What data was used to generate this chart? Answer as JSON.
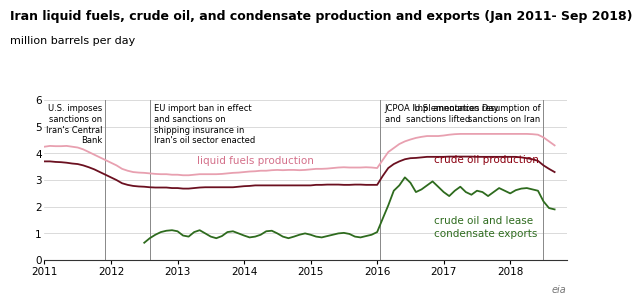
{
  "title": "Iran liquid fuels, crude oil, and condensate production and exports (Jan 2011- Sep 2018)",
  "subtitle": "million barrels per day",
  "title_fontsize": 9.5,
  "subtitle_fontsize": 8.5,
  "ylim": [
    0,
    6
  ],
  "yticks": [
    0,
    1,
    2,
    3,
    4,
    5,
    6
  ],
  "xlim_start": 2011.0,
  "xlim_end": 2018.85,
  "xticks": [
    2011,
    2012,
    2013,
    2014,
    2015,
    2016,
    2017,
    2018
  ],
  "vlines": [
    2011.917,
    2012.583,
    2016.042,
    2018.5
  ],
  "line_colors": {
    "liquid_fuels": "#e8a0b0",
    "crude_oil": "#6b1020",
    "exports": "#2e6b1e"
  },
  "liquid_fuels_x": [
    2011.0,
    2011.083,
    2011.167,
    2011.25,
    2011.333,
    2011.417,
    2011.5,
    2011.583,
    2011.667,
    2011.75,
    2011.833,
    2011.917,
    2012.0,
    2012.083,
    2012.167,
    2012.25,
    2012.333,
    2012.417,
    2012.5,
    2012.583,
    2012.667,
    2012.75,
    2012.833,
    2012.917,
    2013.0,
    2013.083,
    2013.167,
    2013.25,
    2013.333,
    2013.417,
    2013.5,
    2013.583,
    2013.667,
    2013.75,
    2013.833,
    2013.917,
    2014.0,
    2014.083,
    2014.167,
    2014.25,
    2014.333,
    2014.417,
    2014.5,
    2014.583,
    2014.667,
    2014.75,
    2014.833,
    2014.917,
    2015.0,
    2015.083,
    2015.167,
    2015.25,
    2015.333,
    2015.417,
    2015.5,
    2015.583,
    2015.667,
    2015.75,
    2015.833,
    2015.917,
    2016.0,
    2016.083,
    2016.167,
    2016.25,
    2016.333,
    2016.417,
    2016.5,
    2016.583,
    2016.667,
    2016.75,
    2016.833,
    2016.917,
    2017.0,
    2017.083,
    2017.167,
    2017.25,
    2017.333,
    2017.417,
    2017.5,
    2017.583,
    2017.667,
    2017.75,
    2017.833,
    2017.917,
    2018.0,
    2018.083,
    2018.167,
    2018.25,
    2018.333,
    2018.417,
    2018.5,
    2018.583,
    2018.667
  ],
  "liquid_fuels_y": [
    4.25,
    4.28,
    4.27,
    4.27,
    4.28,
    4.25,
    4.22,
    4.15,
    4.05,
    3.95,
    3.85,
    3.75,
    3.65,
    3.55,
    3.42,
    3.35,
    3.3,
    3.28,
    3.27,
    3.25,
    3.23,
    3.22,
    3.22,
    3.2,
    3.2,
    3.18,
    3.18,
    3.2,
    3.22,
    3.22,
    3.22,
    3.22,
    3.23,
    3.25,
    3.27,
    3.28,
    3.3,
    3.32,
    3.33,
    3.35,
    3.35,
    3.37,
    3.38,
    3.37,
    3.38,
    3.38,
    3.37,
    3.38,
    3.4,
    3.42,
    3.42,
    3.43,
    3.45,
    3.47,
    3.48,
    3.47,
    3.47,
    3.47,
    3.48,
    3.47,
    3.45,
    3.75,
    4.05,
    4.2,
    4.35,
    4.45,
    4.52,
    4.58,
    4.62,
    4.65,
    4.65,
    4.65,
    4.67,
    4.7,
    4.72,
    4.73,
    4.73,
    4.73,
    4.73,
    4.73,
    4.73,
    4.73,
    4.73,
    4.73,
    4.73,
    4.73,
    4.73,
    4.73,
    4.72,
    4.7,
    4.6,
    4.45,
    4.3
  ],
  "crude_oil_x": [
    2011.0,
    2011.083,
    2011.167,
    2011.25,
    2011.333,
    2011.417,
    2011.5,
    2011.583,
    2011.667,
    2011.75,
    2011.833,
    2011.917,
    2012.0,
    2012.083,
    2012.167,
    2012.25,
    2012.333,
    2012.417,
    2012.5,
    2012.583,
    2012.667,
    2012.75,
    2012.833,
    2012.917,
    2013.0,
    2013.083,
    2013.167,
    2013.25,
    2013.333,
    2013.417,
    2013.5,
    2013.583,
    2013.667,
    2013.75,
    2013.833,
    2013.917,
    2014.0,
    2014.083,
    2014.167,
    2014.25,
    2014.333,
    2014.417,
    2014.5,
    2014.583,
    2014.667,
    2014.75,
    2014.833,
    2014.917,
    2015.0,
    2015.083,
    2015.167,
    2015.25,
    2015.333,
    2015.417,
    2015.5,
    2015.583,
    2015.667,
    2015.75,
    2015.833,
    2015.917,
    2016.0,
    2016.083,
    2016.167,
    2016.25,
    2016.333,
    2016.417,
    2016.5,
    2016.583,
    2016.667,
    2016.75,
    2016.833,
    2016.917,
    2017.0,
    2017.083,
    2017.167,
    2017.25,
    2017.333,
    2017.417,
    2017.5,
    2017.583,
    2017.667,
    2017.75,
    2017.833,
    2017.917,
    2018.0,
    2018.083,
    2018.167,
    2018.25,
    2018.333,
    2018.417,
    2018.5,
    2018.583,
    2018.667
  ],
  "crude_oil_y": [
    3.7,
    3.7,
    3.68,
    3.67,
    3.65,
    3.62,
    3.6,
    3.55,
    3.48,
    3.4,
    3.3,
    3.2,
    3.1,
    3.0,
    2.88,
    2.82,
    2.78,
    2.76,
    2.75,
    2.73,
    2.72,
    2.72,
    2.72,
    2.7,
    2.7,
    2.68,
    2.68,
    2.7,
    2.72,
    2.73,
    2.73,
    2.73,
    2.73,
    2.73,
    2.73,
    2.75,
    2.77,
    2.78,
    2.8,
    2.8,
    2.8,
    2.8,
    2.8,
    2.8,
    2.8,
    2.8,
    2.8,
    2.8,
    2.8,
    2.82,
    2.82,
    2.83,
    2.83,
    2.83,
    2.82,
    2.82,
    2.83,
    2.83,
    2.82,
    2.82,
    2.82,
    3.15,
    3.45,
    3.6,
    3.7,
    3.78,
    3.82,
    3.83,
    3.85,
    3.87,
    3.87,
    3.87,
    3.87,
    3.88,
    3.88,
    3.88,
    3.88,
    3.88,
    3.87,
    3.87,
    3.87,
    3.87,
    3.87,
    3.87,
    3.87,
    3.87,
    3.85,
    3.82,
    3.78,
    3.72,
    3.55,
    3.42,
    3.3
  ],
  "exports_x": [
    2012.5,
    2012.583,
    2012.667,
    2012.75,
    2012.833,
    2012.917,
    2013.0,
    2013.083,
    2013.167,
    2013.25,
    2013.333,
    2013.417,
    2013.5,
    2013.583,
    2013.667,
    2013.75,
    2013.833,
    2013.917,
    2014.0,
    2014.083,
    2014.167,
    2014.25,
    2014.333,
    2014.417,
    2014.5,
    2014.583,
    2014.667,
    2014.75,
    2014.833,
    2014.917,
    2015.0,
    2015.083,
    2015.167,
    2015.25,
    2015.333,
    2015.417,
    2015.5,
    2015.583,
    2015.667,
    2015.75,
    2015.833,
    2015.917,
    2016.0,
    2016.083,
    2016.167,
    2016.25,
    2016.333,
    2016.417,
    2016.5,
    2016.583,
    2016.667,
    2016.75,
    2016.833,
    2016.917,
    2017.0,
    2017.083,
    2017.167,
    2017.25,
    2017.333,
    2017.417,
    2017.5,
    2017.583,
    2017.667,
    2017.75,
    2017.833,
    2017.917,
    2018.0,
    2018.083,
    2018.167,
    2018.25,
    2018.333,
    2018.417,
    2018.5,
    2018.583,
    2018.667
  ],
  "exports_y": [
    0.65,
    0.82,
    0.95,
    1.05,
    1.1,
    1.12,
    1.08,
    0.92,
    0.88,
    1.05,
    1.12,
    1.0,
    0.88,
    0.82,
    0.9,
    1.05,
    1.08,
    1.0,
    0.92,
    0.85,
    0.88,
    0.95,
    1.08,
    1.1,
    1.0,
    0.88,
    0.82,
    0.88,
    0.95,
    1.0,
    0.95,
    0.88,
    0.85,
    0.9,
    0.95,
    1.0,
    1.02,
    0.98,
    0.88,
    0.85,
    0.9,
    0.95,
    1.05,
    1.55,
    2.05,
    2.6,
    2.8,
    3.1,
    2.9,
    2.55,
    2.65,
    2.8,
    2.95,
    2.75,
    2.55,
    2.4,
    2.6,
    2.75,
    2.55,
    2.45,
    2.6,
    2.55,
    2.4,
    2.55,
    2.7,
    2.6,
    2.5,
    2.62,
    2.68,
    2.7,
    2.65,
    2.6,
    2.2,
    1.95,
    1.9
  ],
  "background_color": "#ffffff",
  "grid_color": "#cccccc",
  "label_color_liquid": "#d4708a",
  "label_color_crude": "#8b0010",
  "label_color_exports": "#2e6b1e"
}
